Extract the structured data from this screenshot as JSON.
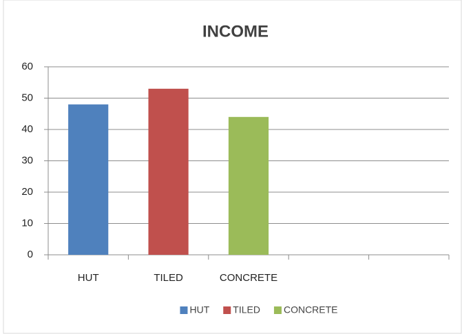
{
  "chart_data": {
    "type": "bar",
    "title": "INCOME",
    "categories": [
      "HUT",
      "TILED",
      "CONCRETE",
      null,
      null
    ],
    "values": [
      48,
      53,
      44,
      null,
      null
    ],
    "colors": [
      "#4f81bd",
      "#c0504d",
      "#9bbb59",
      null,
      null
    ],
    "ylim": [
      0,
      60
    ],
    "yticks": [
      0,
      10,
      20,
      30,
      40,
      50,
      60
    ],
    "grid": true,
    "legend": "bottom"
  }
}
